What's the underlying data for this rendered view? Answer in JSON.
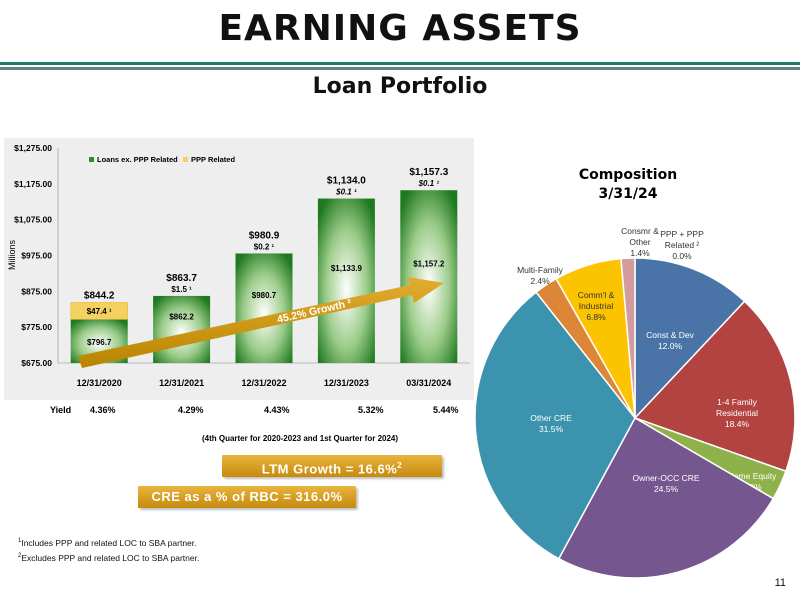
{
  "header": {
    "title": "EARNING ASSETS",
    "subtitle": "Loan Portfolio"
  },
  "chart_data": [
    {
      "type": "bar",
      "title": "",
      "ylabel": "Millions",
      "ylim": [
        675,
        1275
      ],
      "yticks": [
        "$675.00",
        "$775.00",
        "$875.00",
        "$975.00",
        "$1,075.00",
        "$1,175.00",
        "$1,275.00"
      ],
      "categories": [
        "12/31/2020",
        "12/31/2021",
        "12/31/2022",
        "12/31/2023",
        "03/31/2024"
      ],
      "legend_position": "top",
      "series": [
        {
          "name": "Loans ex. PPP Related",
          "color": "#2e8b2e",
          "values": [
            796.7,
            862.2,
            980.7,
            1133.9,
            1157.2
          ],
          "labels": [
            "$796.7",
            "$862.2",
            "$980.7",
            "$1,133.9",
            "$1,157.2"
          ]
        },
        {
          "name": "PPP Related",
          "color": "#f4d060",
          "values": [
            47.4,
            1.5,
            0.2,
            0.1,
            0.1
          ],
          "labels": [
            "$47.4 ¹",
            "$1.5 ¹",
            "$0.2 ¹",
            "$0.1 ¹",
            "$0.1 ¹"
          ]
        }
      ],
      "totals": [
        "$844.2",
        "$863.7",
        "$980.9",
        "$1,134.0",
        "$1,157.3"
      ],
      "growth_arrow_label": "45.2% Growth ²",
      "yield_label": "Yield",
      "yields": [
        "4.36%",
        "4.29%",
        "4.43%",
        "5.32%",
        "5.44%"
      ],
      "period_note": "(4th Quarter for 2020-2023 and 1st Quarter for 2024)"
    },
    {
      "type": "pie",
      "title": "Composition",
      "subtitle": "3/31/24",
      "slices": [
        {
          "label": "PPP + PPP Related ²",
          "value": 0.0,
          "pct": "0.0%",
          "color": "#4f80bd"
        },
        {
          "label": "Const & Dev",
          "value": 12.0,
          "pct": "12.0%",
          "color": "#4a74a8"
        },
        {
          "label": "1-4 Family Residential",
          "value": 18.4,
          "pct": "18.4%",
          "color": "#b24340"
        },
        {
          "label": "Home Equity",
          "value": 3.0,
          "pct": "3.0%",
          "color": "#8fb14a"
        },
        {
          "label": "Owner-OCC CRE",
          "value": 24.5,
          "pct": "24.5%",
          "color": "#76568f"
        },
        {
          "label": "Other CRE",
          "value": 31.5,
          "pct": "31.5%",
          "color": "#3b93ad"
        },
        {
          "label": "Multi-Family",
          "value": 2.4,
          "pct": "2.4%",
          "color": "#de8637"
        },
        {
          "label": "Comm'l & Industrial",
          "value": 6.8,
          "pct": "6.8%",
          "color": "#fcc400"
        },
        {
          "label": "Consmr & Other",
          "value": 1.4,
          "pct": "1.4%",
          "color": "#d29b9d"
        }
      ]
    }
  ],
  "banners": {
    "ltm_growth": "LTM Growth = 16.6%",
    "ltm_sup": "2",
    "cre_rbc": "CRE as a % of RBC = 316.0%"
  },
  "footnotes": {
    "n1": "Includes PPP and related LOC to SBA partner.",
    "n2": "Excludes PPP and related LOC to SBA partner."
  },
  "page_number": "11"
}
